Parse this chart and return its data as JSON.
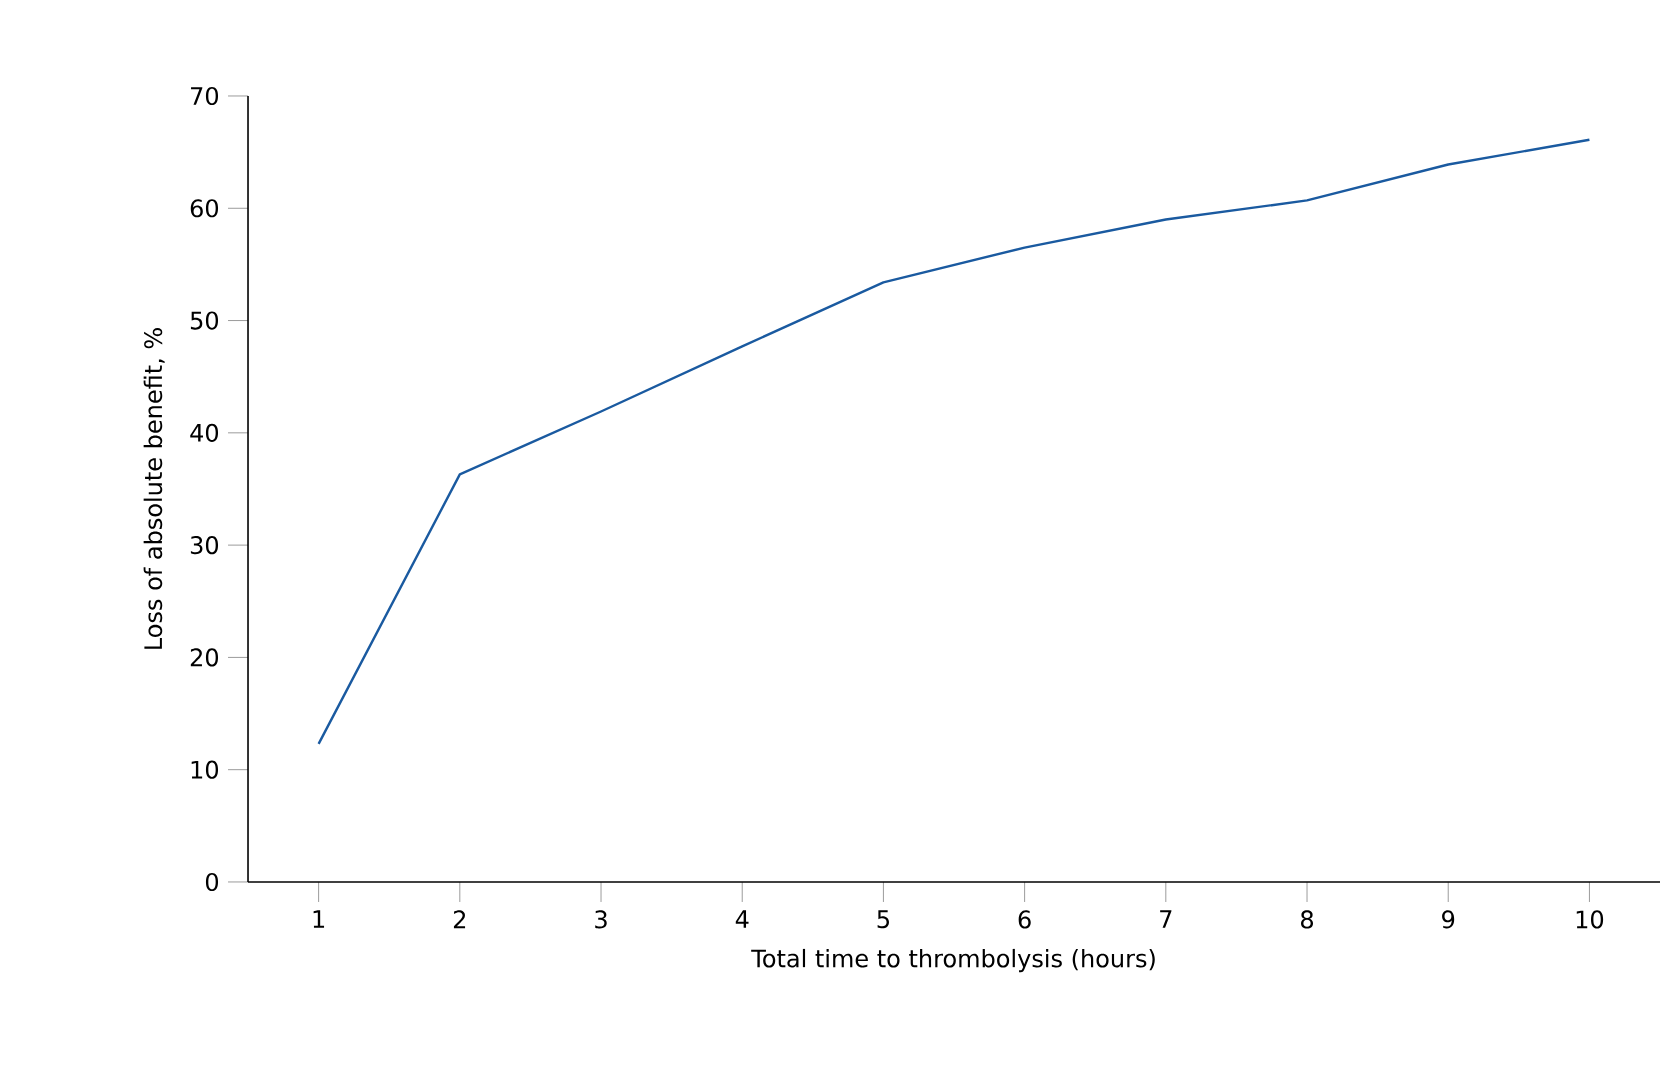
{
  "chart_data": {
    "type": "line",
    "xlabel": "Total time to thrombolysis (hours)",
    "ylabel": "Loss of absolute benefit, %",
    "x": [
      1,
      2,
      3,
      4,
      5,
      6,
      7,
      8,
      9,
      10
    ],
    "series": [
      {
        "color": "#1a5aa0",
        "values": [
          12.3,
          36.3,
          41.9,
          47.7,
          53.4,
          56.5,
          59.0,
          60.7,
          63.9,
          66.1
        ]
      }
    ],
    "xlim": [
      0.5,
      10.5
    ],
    "xticks": [
      1,
      2,
      3,
      4,
      5,
      6,
      7,
      8,
      9,
      10
    ],
    "ylim": [
      0,
      70
    ],
    "yticks": [
      0,
      10,
      20,
      30,
      40,
      50,
      60,
      70
    ],
    "grid": false,
    "marker": "none",
    "line_style": "solid"
  }
}
